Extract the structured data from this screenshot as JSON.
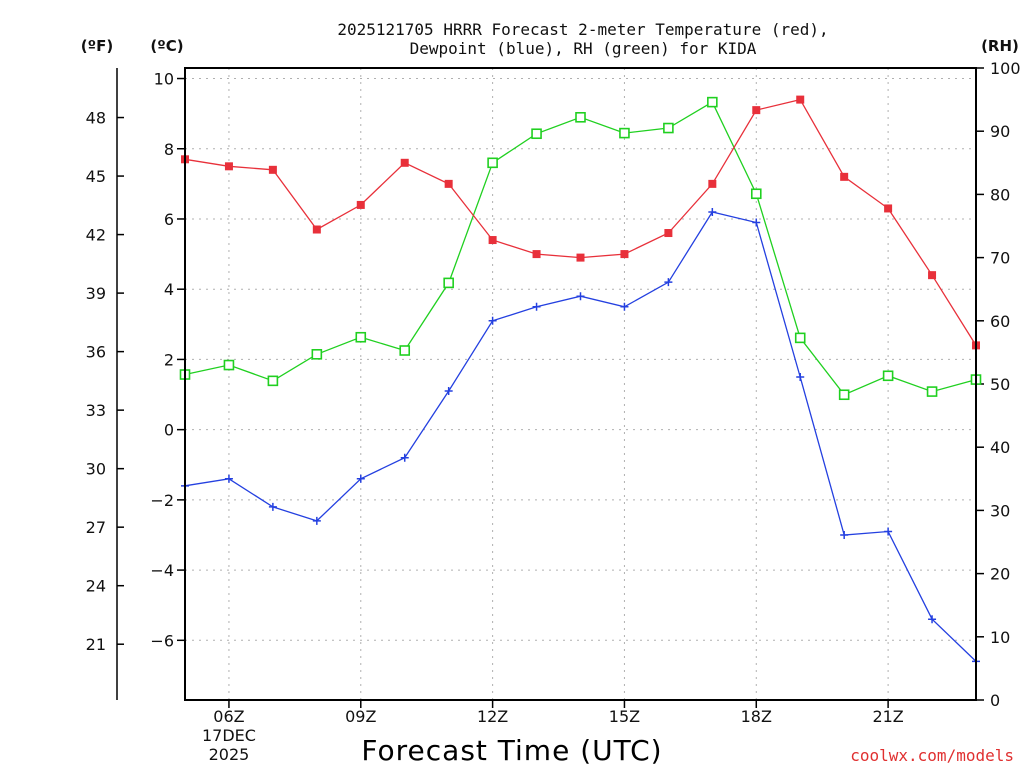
{
  "title_line1": "2025121705 HRRR Forecast 2-meter Temperature (red),",
  "title_line2": "Dewpoint (blue), RH (green) for KIDA",
  "units": {
    "fahrenheit": "(ºF)",
    "celsius": "(ºC)",
    "rh": "(RH)"
  },
  "credit": "coolwx.com/models",
  "colors": {
    "temp": "#e8303a",
    "dewpoint": "#2440e0",
    "rh": "#20d020",
    "credit": "#e03030"
  },
  "chart_data": {
    "type": "line",
    "xlabel": "Forecast Time (UTC)",
    "x_hours": [
      5,
      6,
      7,
      8,
      9,
      10,
      11,
      12,
      13,
      14,
      15,
      16,
      17,
      18,
      19,
      20,
      21,
      22,
      23
    ],
    "x_ticks": [
      {
        "hour": 6,
        "label": "06Z",
        "sub1": "17DEC",
        "sub2": "2025"
      },
      {
        "hour": 9,
        "label": "09Z"
      },
      {
        "hour": 12,
        "label": "12Z"
      },
      {
        "hour": 15,
        "label": "15Z"
      },
      {
        "hour": 18,
        "label": "18Z"
      },
      {
        "hour": 21,
        "label": "21Z"
      }
    ],
    "xlim": [
      5,
      23
    ],
    "celsius_axis": {
      "ylim": [
        -7.7,
        10.3
      ],
      "ticks": [
        10,
        8,
        6,
        4,
        2,
        0,
        -2,
        -4,
        -6
      ]
    },
    "fahrenheit_axis": {
      "ticks": [
        48,
        45,
        42,
        39,
        36,
        33,
        30,
        27,
        24,
        21
      ]
    },
    "rh_axis": {
      "ylim": [
        0,
        100
      ],
      "ticks": [
        100,
        90,
        80,
        70,
        60,
        50,
        40,
        30,
        20,
        10,
        0
      ]
    },
    "series": [
      {
        "name": "Temperature",
        "unit": "C",
        "marker": "square-filled",
        "color_key": "temp",
        "values": [
          7.7,
          7.5,
          7.4,
          5.7,
          6.4,
          7.6,
          7.0,
          5.4,
          5.0,
          4.9,
          5.0,
          5.6,
          7.0,
          9.1,
          9.4,
          7.2,
          6.3,
          4.4,
          2.4
        ]
      },
      {
        "name": "Dewpoint",
        "unit": "C",
        "marker": "plus",
        "color_key": "dewpoint",
        "values": [
          -1.6,
          -1.4,
          -2.2,
          -2.6,
          -1.4,
          -0.8,
          1.1,
          3.1,
          3.5,
          3.8,
          3.5,
          4.2,
          6.2,
          5.9,
          1.5,
          -3.0,
          -2.9,
          -5.4,
          -6.6
        ]
      },
      {
        "name": "Relative Humidity",
        "unit": "%",
        "marker": "square-open",
        "color_key": "rh",
        "values": [
          51.5,
          53.0,
          50.5,
          54.7,
          57.4,
          55.3,
          66.0,
          85.0,
          89.6,
          92.2,
          89.7,
          90.5,
          94.6,
          80.1,
          57.3,
          48.3,
          51.3,
          48.8,
          50.7
        ]
      }
    ]
  }
}
